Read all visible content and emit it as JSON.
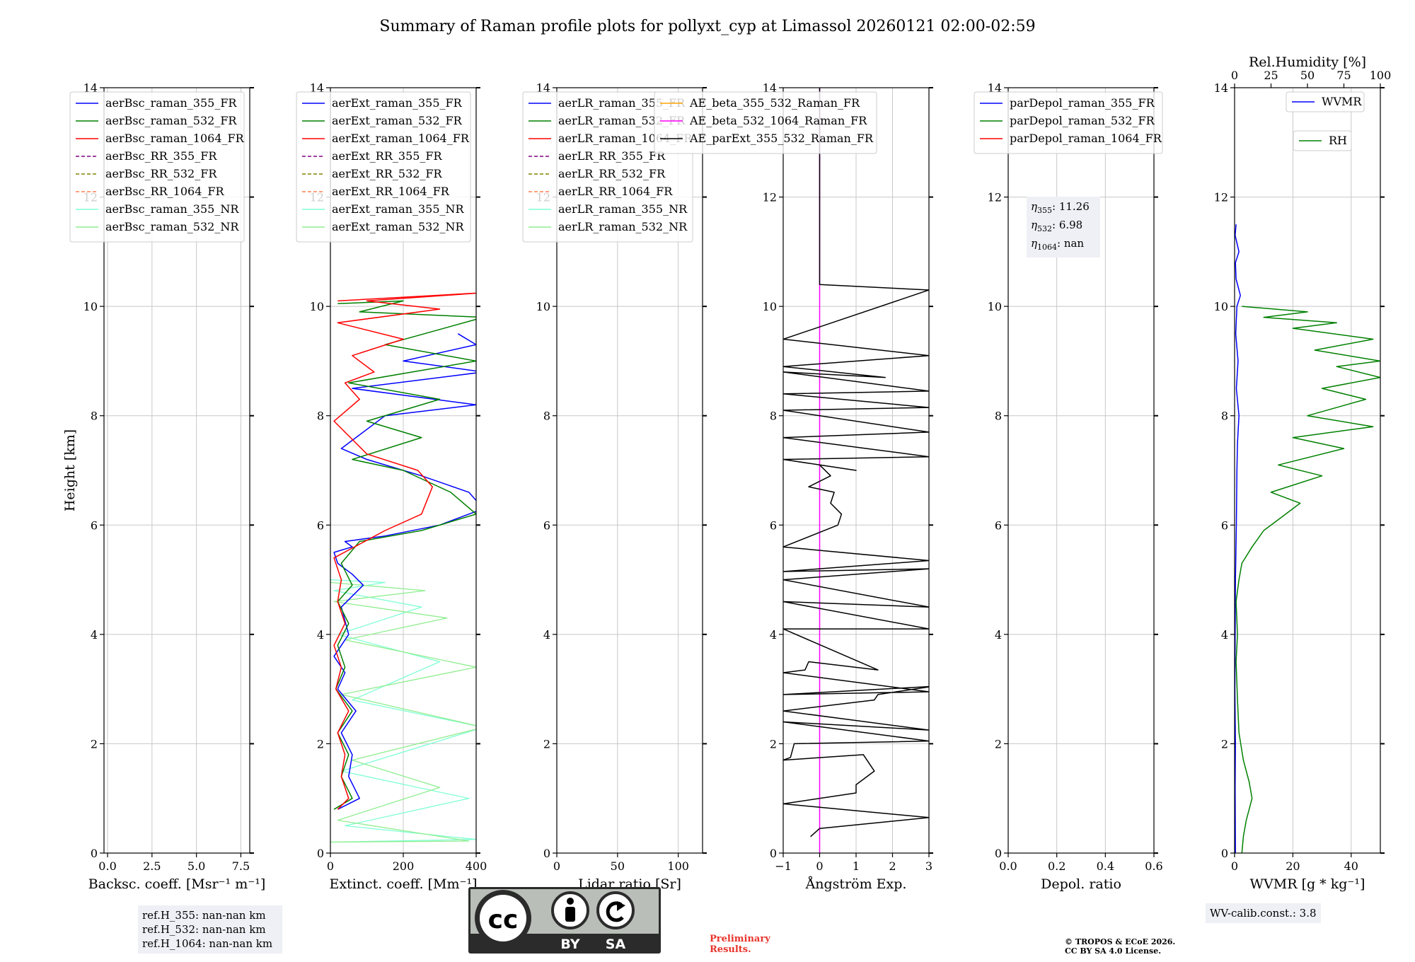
{
  "title": "Summary of Raman profile plots for pollyxt_cyp at Limassol 20260121 02:00-02:59",
  "colors": {
    "b355": "#0000ff",
    "b532": "#008000",
    "b1064": "#ff0000",
    "rr355": "#800080",
    "rr532": "#808000",
    "rr1064": "#ff7f50",
    "nr355": "#7fffd4",
    "nr532": "#90ee90",
    "ae1": "#ffa500",
    "ae2": "#ff00ff",
    "ae3": "#000000",
    "rh": "#008000"
  },
  "chart_data": [
    {
      "type": "line",
      "id": "bsc",
      "xlabel": "Backsc. coeff. [Msr⁻¹ m⁻¹]",
      "ylabel": "Height [km]",
      "xlim": [
        -0.2,
        8
      ],
      "ylim": [
        0,
        14
      ],
      "xticks": [
        0,
        2.5,
        5,
        7.5
      ],
      "xticklabels": [
        "0.0",
        "2.5",
        "5.0",
        "7.5"
      ],
      "yticks": [
        0,
        2,
        4,
        6,
        8,
        10,
        12,
        14
      ],
      "legend": [
        {
          "label": "aerBsc_raman_355_FR",
          "color": "b355",
          "dash": false
        },
        {
          "label": "aerBsc_raman_532_FR",
          "color": "b532",
          "dash": false
        },
        {
          "label": "aerBsc_raman_1064_FR",
          "color": "b1064",
          "dash": false
        },
        {
          "label": "aerBsc_RR_355_FR",
          "color": "rr355",
          "dash": true
        },
        {
          "label": "aerBsc_RR_532_FR",
          "color": "rr532",
          "dash": true
        },
        {
          "label": "aerBsc_RR_1064_FR",
          "color": "rr1064",
          "dash": true
        },
        {
          "label": "aerBsc_raman_355_NR",
          "color": "nr355",
          "dash": false
        },
        {
          "label": "aerBsc_raman_532_NR",
          "color": "nr532",
          "dash": false
        }
      ],
      "series": []
    },
    {
      "type": "line",
      "id": "ext",
      "xlabel": "Extinct. coeff. [Mm⁻¹]",
      "ylabel": "",
      "xlim": [
        0,
        400
      ],
      "ylim": [
        0,
        14
      ],
      "xticks": [
        0,
        200,
        400
      ],
      "xticklabels": [
        "0",
        "200",
        "400"
      ],
      "yticks": [
        0,
        2,
        4,
        6,
        8,
        10,
        12,
        14
      ],
      "legend": [
        {
          "label": "aerExt_raman_355_FR",
          "color": "b355",
          "dash": false
        },
        {
          "label": "aerExt_raman_532_FR",
          "color": "b532",
          "dash": false
        },
        {
          "label": "aerExt_raman_1064_FR",
          "color": "b1064",
          "dash": false
        },
        {
          "label": "aerExt_RR_355_FR",
          "color": "rr355",
          "dash": true
        },
        {
          "label": "aerExt_RR_532_FR",
          "color": "rr532",
          "dash": true
        },
        {
          "label": "aerExt_RR_1064_FR",
          "color": "rr1064",
          "dash": true
        },
        {
          "label": "aerExt_raman_355_NR",
          "color": "nr355",
          "dash": false
        },
        {
          "label": "aerExt_raman_532_NR",
          "color": "nr532",
          "dash": false
        }
      ],
      "series": [
        {
          "name": "aerExt_raman_355_NR",
          "color": "nr355",
          "width": 1.3,
          "x": [
            0,
            400,
            40,
            380,
            30,
            420,
            60,
            300,
            20,
            250,
            10,
            150,
            0
          ],
          "y": [
            0.2,
            0.25,
            0.5,
            1.0,
            1.5,
            2.3,
            2.8,
            3.5,
            4.0,
            4.5,
            4.8,
            4.95,
            5.0
          ]
        },
        {
          "name": "aerExt_raman_532_NR",
          "color": "nr532",
          "width": 1.3,
          "x": [
            0,
            380,
            20,
            300,
            60,
            420,
            30,
            400,
            40,
            320,
            10,
            260,
            0
          ],
          "y": [
            0.2,
            0.22,
            0.6,
            1.2,
            1.7,
            2.3,
            2.9,
            3.4,
            3.9,
            4.3,
            4.6,
            4.8,
            4.95
          ]
        },
        {
          "name": "aerExt_raman_355_FR",
          "color": "b355",
          "width": 1.5,
          "x": [
            20,
            80,
            50,
            60,
            30,
            70,
            20,
            40,
            10,
            50,
            30,
            90,
            60,
            20,
            10,
            60,
            40,
            150,
            300,
            420,
            380,
            250,
            100,
            30,
            150,
            400,
            60,
            420,
            200,
            400,
            350
          ],
          "y": [
            0.8,
            1.0,
            1.4,
            1.8,
            2.2,
            2.6,
            3.0,
            3.3,
            3.6,
            4.0,
            4.5,
            4.9,
            5.1,
            5.3,
            5.5,
            5.6,
            5.7,
            5.8,
            6.0,
            6.3,
            6.6,
            6.9,
            7.2,
            7.4,
            8.0,
            8.2,
            8.5,
            8.8,
            9.0,
            9.3,
            9.5
          ]
        },
        {
          "name": "aerExt_raman_532_FR",
          "color": "b532",
          "width": 1.5,
          "x": [
            10,
            60,
            30,
            50,
            20,
            60,
            15,
            40,
            20,
            50,
            20,
            60,
            30,
            80,
            250,
            400,
            330,
            200,
            60,
            250,
            100,
            300,
            50,
            400,
            150,
            420,
            80,
            200,
            20
          ],
          "y": [
            0.8,
            1.0,
            1.4,
            1.8,
            2.2,
            2.6,
            3.0,
            3.4,
            3.8,
            4.2,
            4.6,
            4.9,
            5.3,
            5.7,
            5.9,
            6.2,
            6.6,
            7.0,
            7.2,
            7.6,
            7.9,
            8.3,
            8.6,
            9.0,
            9.3,
            9.8,
            9.9,
            10.1,
            10.05
          ]
        },
        {
          "name": "aerExt_raman_1064_FR",
          "color": "b1064",
          "width": 1.5,
          "x": [
            20,
            50,
            30,
            40,
            20,
            50,
            15,
            30,
            10,
            40,
            20,
            30,
            10,
            150,
            250,
            280,
            240,
            100,
            10,
            80,
            40,
            120,
            60,
            200,
            20,
            300,
            100,
            420,
            20
          ],
          "y": [
            0.8,
            1.0,
            1.4,
            1.8,
            2.2,
            2.6,
            3.0,
            3.4,
            3.8,
            4.2,
            4.6,
            5.0,
            5.4,
            5.9,
            6.2,
            6.7,
            7.0,
            7.3,
            7.9,
            8.3,
            8.6,
            8.8,
            9.1,
            9.4,
            9.7,
            9.95,
            10.1,
            10.25,
            10.1
          ]
        }
      ]
    },
    {
      "type": "line",
      "id": "lr",
      "xlabel": "Lidar ratio [Sr]",
      "ylabel": "",
      "xlim": [
        0,
        120
      ],
      "ylim": [
        0,
        14
      ],
      "xticks": [
        0,
        50,
        100
      ],
      "xticklabels": [
        "0",
        "50",
        "100"
      ],
      "yticks": [
        0,
        2,
        4,
        6,
        8,
        10,
        12,
        14
      ],
      "legend": [
        {
          "label": "aerLR_raman_355_FR",
          "color": "b355",
          "dash": false
        },
        {
          "label": "aerLR_raman_532_FR",
          "color": "b532",
          "dash": false
        },
        {
          "label": "aerLR_raman_1064_FR",
          "color": "b1064",
          "dash": false
        },
        {
          "label": "aerLR_RR_355_FR",
          "color": "rr355",
          "dash": true
        },
        {
          "label": "aerLR_RR_532_FR",
          "color": "rr532",
          "dash": true
        },
        {
          "label": "aerLR_RR_1064_FR",
          "color": "rr1064",
          "dash": true
        },
        {
          "label": "aerLR_raman_355_NR",
          "color": "nr355",
          "dash": false
        },
        {
          "label": "aerLR_raman_532_NR",
          "color": "nr532",
          "dash": false
        }
      ],
      "series": []
    },
    {
      "type": "line",
      "id": "ae",
      "xlabel": "Ångström Exp.",
      "ylabel": "",
      "xlim": [
        -1,
        3
      ],
      "ylim": [
        0,
        14
      ],
      "xticks": [
        -1,
        0,
        1,
        2,
        3
      ],
      "xticklabels": [
        "−1",
        "0",
        "1",
        "2",
        "3"
      ],
      "yticks": [
        0,
        2,
        4,
        6,
        8,
        10,
        12,
        14
      ],
      "legend": [
        {
          "label": "AE_beta_355_532_Raman_FR",
          "color": "ae1",
          "dash": false
        },
        {
          "label": "AE_beta_532_1064_Raman_FR",
          "color": "ae2",
          "dash": false
        },
        {
          "label": "AE_parExt_355_532_Raman_FR",
          "color": "ae3",
          "dash": false
        }
      ],
      "series": [
        {
          "name": "AE_beta_532_1064_Raman_FR",
          "color": "ae2",
          "width": 1.5,
          "x": [
            0,
            0
          ],
          "y": [
            0,
            14
          ]
        },
        {
          "name": "AE_parExt_355_532_Raman_FR",
          "color": "ae3",
          "width": 1.5,
          "x": [
            -0.25,
            0,
            3,
            -1,
            1.0,
            1.0,
            1.5,
            1.2,
            -1,
            -0.8,
            -0.7,
            3,
            -1,
            3,
            -1,
            1.5,
            1.6,
            3.1,
            -1,
            3,
            -1,
            -0.4,
            -0.3,
            1.6,
            -1,
            3,
            -1,
            3,
            -1,
            3,
            -1,
            3,
            -1,
            0.5,
            0.6,
            0.3,
            0.4,
            -0.3,
            0.3,
            0.0,
            1.0,
            -1,
            3,
            -1,
            3,
            -1,
            3,
            -1,
            3,
            -1,
            1.8,
            -1,
            3,
            -1,
            3,
            0,
            0
          ],
          "y": [
            0.3,
            0.45,
            0.65,
            0.9,
            1.1,
            1.25,
            1.5,
            1.8,
            1.7,
            1.75,
            2.0,
            2.05,
            2.4,
            2.25,
            2.6,
            2.8,
            2.9,
            3.05,
            2.9,
            2.95,
            3.3,
            3.35,
            3.5,
            3.35,
            4.1,
            4.1,
            4.6,
            4.5,
            5.0,
            5.2,
            5.15,
            5.35,
            5.6,
            6.0,
            6.2,
            6.4,
            6.6,
            6.7,
            6.9,
            7.1,
            7.0,
            7.2,
            7.25,
            7.6,
            7.7,
            8.1,
            8.15,
            8.4,
            8.45,
            8.8,
            8.7,
            8.9,
            9.1,
            9.4,
            10.3,
            10.4,
            14
          ]
        }
      ]
    },
    {
      "type": "line",
      "id": "depol",
      "xlabel": "Depol. ratio",
      "ylabel": "",
      "xlim": [
        0,
        0.6
      ],
      "ylim": [
        0,
        14
      ],
      "xticks": [
        0,
        0.2,
        0.4,
        0.6
      ],
      "xticklabels": [
        "0.0",
        "0.2",
        "0.4",
        "0.6"
      ],
      "yticks": [
        0,
        2,
        4,
        6,
        8,
        10,
        12,
        14
      ],
      "legend": [
        {
          "label": "parDepol_raman_355_FR",
          "color": "b355",
          "dash": false
        },
        {
          "label": "parDepol_raman_532_FR",
          "color": "b532",
          "dash": false
        },
        {
          "label": "parDepol_raman_1064_FR",
          "color": "b1064",
          "dash": false
        }
      ],
      "series": []
    },
    {
      "type": "line",
      "id": "wv",
      "xlabel": "WVMR [g * kg⁻¹]",
      "ylabel": "",
      "xlim": [
        0,
        50
      ],
      "ylim": [
        0,
        14
      ],
      "xticks": [
        0,
        20,
        40
      ],
      "xticklabels": [
        "0",
        "20",
        "40"
      ],
      "yticks": [
        0,
        2,
        4,
        6,
        8,
        10,
        12,
        14
      ],
      "x2label": "Rel.Humidity [%]",
      "x2lim": [
        0,
        100
      ],
      "x2ticks": [
        0,
        25,
        50,
        75,
        100
      ],
      "x2ticklabels": [
        "0",
        "25",
        "50",
        "75",
        "100"
      ],
      "legend": [
        {
          "label": "WVMR",
          "color": "b355",
          "dash": false
        },
        {
          "label": "RH",
          "color": "rh",
          "dash": false
        }
      ],
      "series": [
        {
          "name": "WVMR",
          "color": "b355",
          "width": 1.5,
          "x": [
            0.3,
            0.2,
            0.3,
            0.1,
            0.2,
            0.3,
            0.6,
            0.8,
            1.0,
            1.5,
            0.6,
            1.2,
            0.4,
            0.8,
            2.0,
            0.5,
            0.3,
            1.5,
            0.2,
            0.5
          ],
          "y": [
            0,
            1.2,
            2.0,
            3.0,
            4.0,
            5.0,
            6.0,
            7.0,
            7.5,
            8.0,
            8.5,
            9.0,
            9.5,
            10.0,
            10.2,
            10.5,
            10.8,
            11.0,
            11.3,
            11.5
          ]
        },
        {
          "name": "RH",
          "color": "rh",
          "axis": "x2",
          "width": 1.5,
          "x": [
            5,
            6,
            8,
            12,
            10,
            6,
            3,
            2,
            1,
            2,
            1,
            3,
            5,
            12,
            20,
            30,
            45,
            25,
            60,
            30,
            75,
            40,
            95,
            50,
            90,
            60,
            100,
            70,
            100,
            55,
            95,
            40,
            70,
            20,
            50,
            5
          ],
          "y": [
            0,
            0.3,
            0.6,
            1.0,
            1.3,
            1.7,
            2.2,
            2.8,
            3.5,
            4.0,
            4.6,
            5.0,
            5.3,
            5.6,
            5.9,
            6.1,
            6.4,
            6.6,
            6.9,
            7.1,
            7.4,
            7.6,
            7.8,
            8.0,
            8.3,
            8.5,
            8.7,
            8.9,
            9.0,
            9.2,
            9.4,
            9.6,
            9.7,
            9.8,
            9.9,
            10.0
          ]
        }
      ]
    }
  ],
  "annotations": {
    "eta355_value": ": 11.26",
    "eta532_value": ": 6.98",
    "eta1064_value": ": nan",
    "eta_symbol": "η",
    "eta355_sub": "355",
    "eta532_sub": "532",
    "eta1064_sub": "1064",
    "ref_h355": "ref.H_355: nan-nan km",
    "ref_h532": "ref.H_532: nan-nan km",
    "ref_h1064": "ref.H_1064: nan-nan km",
    "wv_calib": "WV-calib.const.: 3.8",
    "preliminary_line1": "Preliminary",
    "preliminary_line2": "Results.",
    "copyright_line1": "© TROPOS & ECoE 2026.",
    "copyright_line2": "CC BY SA 4.0 License.",
    "license_by": "BY",
    "license_sa": "SA",
    "license_cc": "cc"
  }
}
